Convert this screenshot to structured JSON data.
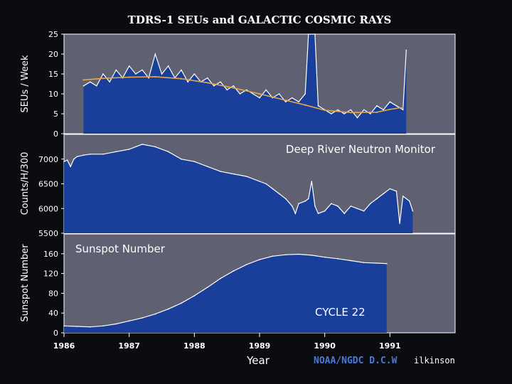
{
  "page_title": "TDRS-1 SEUs and GALACTIC COSMIC RAYS",
  "credit": {
    "prefix": "NOAA/NGDC D.C.W",
    "suffix": "ilkinson"
  },
  "colors": {
    "background": "#0b0c10",
    "panel": "#5f6072",
    "fill": "#1a3f9a",
    "line": "#ffffff",
    "trend": "#e6a64a",
    "text": "#ffffff",
    "panel_border": "#ffffff"
  },
  "chart_data": [
    {
      "type": "area",
      "ylabel": "SEUs / Week",
      "ylim": [
        0,
        25
      ],
      "yticks": [
        "0",
        "5",
        "10",
        "15",
        "20",
        "25"
      ],
      "xlim": [
        1986,
        1992
      ],
      "annotation": "",
      "series": [
        {
          "values": [
            [
              1986.3,
              12
            ],
            [
              1986.4,
              13
            ],
            [
              1986.5,
              12
            ],
            [
              1986.6,
              15
            ],
            [
              1986.7,
              13
            ],
            [
              1986.8,
              16
            ],
            [
              1986.9,
              14
            ],
            [
              1987.0,
              17
            ],
            [
              1987.1,
              15
            ],
            [
              1987.2,
              16
            ],
            [
              1987.3,
              14
            ],
            [
              1987.4,
              20
            ],
            [
              1987.5,
              15
            ],
            [
              1987.6,
              17
            ],
            [
              1987.7,
              14
            ],
            [
              1987.8,
              16
            ],
            [
              1987.9,
              13
            ],
            [
              1988.0,
              15
            ],
            [
              1988.1,
              13
            ],
            [
              1988.2,
              14
            ],
            [
              1988.3,
              12
            ],
            [
              1988.4,
              13
            ],
            [
              1988.5,
              11
            ],
            [
              1988.6,
              12
            ],
            [
              1988.7,
              10
            ],
            [
              1988.8,
              11
            ],
            [
              1988.9,
              10
            ],
            [
              1989.0,
              9
            ],
            [
              1989.1,
              11
            ],
            [
              1989.2,
              9
            ],
            [
              1989.3,
              10
            ],
            [
              1989.4,
              8
            ],
            [
              1989.5,
              9
            ],
            [
              1989.6,
              8
            ],
            [
              1989.7,
              10
            ],
            [
              1989.75,
              25
            ],
            [
              1989.85,
              25
            ],
            [
              1989.9,
              7
            ],
            [
              1990.0,
              6
            ],
            [
              1990.1,
              5
            ],
            [
              1990.2,
              6
            ],
            [
              1990.3,
              5
            ],
            [
              1990.4,
              6
            ],
            [
              1990.5,
              4
            ],
            [
              1990.6,
              6
            ],
            [
              1990.7,
              5
            ],
            [
              1990.8,
              7
            ],
            [
              1990.9,
              6
            ],
            [
              1991.0,
              8
            ],
            [
              1991.1,
              7
            ],
            [
              1991.2,
              6
            ],
            [
              1991.25,
              21
            ]
          ]
        },
        {
          "values": [
            [
              1986.3,
              13.5
            ],
            [
              1986.6,
              13.9
            ],
            [
              1987.0,
              14.2
            ],
            [
              1987.4,
              14.3
            ],
            [
              1987.8,
              13.8
            ],
            [
              1988.2,
              12.8
            ],
            [
              1988.6,
              11.5
            ],
            [
              1989.0,
              10.0
            ],
            [
              1989.4,
              8.4
            ],
            [
              1989.7,
              7.2
            ],
            [
              1990.0,
              5.9
            ],
            [
              1990.4,
              5.3
            ],
            [
              1990.8,
              5.4
            ],
            [
              1991.0,
              6.1
            ],
            [
              1991.2,
              6.6
            ]
          ]
        }
      ]
    },
    {
      "type": "area",
      "ylabel": "Counts/H/300",
      "ylim": [
        5500,
        7500
      ],
      "yticks": [
        "5500",
        "6000",
        "6500",
        "7000"
      ],
      "xlim": [
        1986,
        1992
      ],
      "annotation": "Deep River Neutron Monitor",
      "series": [
        {
          "values": [
            [
              1986.0,
              6950
            ],
            [
              1986.05,
              6980
            ],
            [
              1986.1,
              6850
            ],
            [
              1986.15,
              7000
            ],
            [
              1986.2,
              7050
            ],
            [
              1986.3,
              7080
            ],
            [
              1986.4,
              7100
            ],
            [
              1986.6,
              7100
            ],
            [
              1986.8,
              7150
            ],
            [
              1987.0,
              7200
            ],
            [
              1987.2,
              7300
            ],
            [
              1987.4,
              7250
            ],
            [
              1987.6,
              7150
            ],
            [
              1987.8,
              7000
            ],
            [
              1988.0,
              6950
            ],
            [
              1988.2,
              6850
            ],
            [
              1988.4,
              6750
            ],
            [
              1988.6,
              6700
            ],
            [
              1988.8,
              6650
            ],
            [
              1989.0,
              6550
            ],
            [
              1989.1,
              6500
            ],
            [
              1989.2,
              6400
            ],
            [
              1989.3,
              6300
            ],
            [
              1989.4,
              6200
            ],
            [
              1989.5,
              6050
            ],
            [
              1989.55,
              5900
            ],
            [
              1989.6,
              6100
            ],
            [
              1989.7,
              6150
            ],
            [
              1989.75,
              6200
            ],
            [
              1989.8,
              6550
            ],
            [
              1989.85,
              6050
            ],
            [
              1989.9,
              5900
            ],
            [
              1990.0,
              5950
            ],
            [
              1990.1,
              6100
            ],
            [
              1990.2,
              6050
            ],
            [
              1990.3,
              5900
            ],
            [
              1990.4,
              6050
            ],
            [
              1990.5,
              6000
            ],
            [
              1990.6,
              5950
            ],
            [
              1990.7,
              6100
            ],
            [
              1990.8,
              6200
            ],
            [
              1990.9,
              6300
            ],
            [
              1991.0,
              6400
            ],
            [
              1991.1,
              6350
            ],
            [
              1991.15,
              5700
            ],
            [
              1991.2,
              6250
            ],
            [
              1991.3,
              6150
            ],
            [
              1991.35,
              5950
            ]
          ]
        }
      ]
    },
    {
      "type": "area",
      "ylabel": "Sunspot Number",
      "ylim": [
        0,
        200
      ],
      "yticks": [
        "0",
        "40",
        "80",
        "120",
        "160"
      ],
      "xlim": [
        1986,
        1992
      ],
      "xticks": [
        "1986",
        "1987",
        "1988",
        "1989",
        "1990",
        "1991"
      ],
      "xlabel": "Year",
      "annotation": "Sunspot Number",
      "note": "CYCLE 22",
      "series": [
        {
          "values": [
            [
              1986.0,
              14
            ],
            [
              1986.2,
              13
            ],
            [
              1986.4,
              12
            ],
            [
              1986.6,
              14
            ],
            [
              1986.8,
              18
            ],
            [
              1987.0,
              24
            ],
            [
              1987.2,
              30
            ],
            [
              1987.4,
              38
            ],
            [
              1987.6,
              48
            ],
            [
              1987.8,
              60
            ],
            [
              1988.0,
              75
            ],
            [
              1988.2,
              92
            ],
            [
              1988.4,
              110
            ],
            [
              1988.6,
              125
            ],
            [
              1988.8,
              138
            ],
            [
              1989.0,
              148
            ],
            [
              1989.2,
              155
            ],
            [
              1989.4,
              158
            ],
            [
              1989.6,
              159
            ],
            [
              1989.8,
              157
            ],
            [
              1990.0,
              153
            ],
            [
              1990.2,
              150
            ],
            [
              1990.4,
              146
            ],
            [
              1990.6,
              142
            ],
            [
              1990.8,
              141
            ],
            [
              1990.95,
              140
            ]
          ]
        }
      ]
    }
  ]
}
